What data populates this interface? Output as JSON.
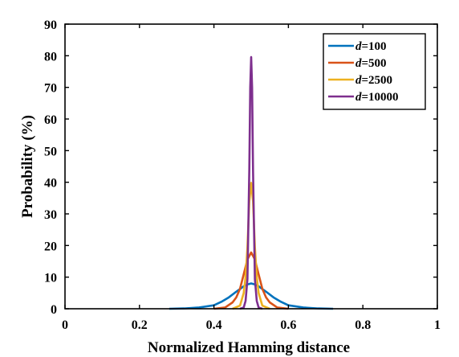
{
  "chart_data": {
    "type": "line",
    "xlabel": "Normalized Hamming distance",
    "ylabel": "Probability (%)",
    "xlim": [
      0,
      1
    ],
    "ylim": [
      0,
      90
    ],
    "xticks": [
      0,
      0.2,
      0.4,
      0.6,
      0.8,
      1
    ],
    "xtick_labels": [
      "0",
      "0.2",
      "0.4",
      "0.6",
      "0.8",
      "1"
    ],
    "yticks": [
      0,
      10,
      20,
      30,
      40,
      50,
      60,
      70,
      80,
      90
    ],
    "ytick_labels": [
      "0",
      "10",
      "20",
      "30",
      "40",
      "50",
      "60",
      "70",
      "80",
      "90"
    ],
    "grid": false,
    "legend_position": "top-right",
    "series": [
      {
        "name": "d=100",
        "name_prefix": "d",
        "name_suffix": "=100",
        "color": "#0072BD",
        "x": [
          0.28,
          0.32,
          0.36,
          0.4,
          0.42,
          0.44,
          0.46,
          0.48,
          0.49,
          0.5,
          0.51,
          0.52,
          0.54,
          0.56,
          0.58,
          0.6,
          0.64,
          0.68,
          0.72
        ],
        "y": [
          0.0,
          0.1,
          0.4,
          1.1,
          2.2,
          3.6,
          5.4,
          7.1,
          7.7,
          8.0,
          7.7,
          7.1,
          5.4,
          3.6,
          2.2,
          1.1,
          0.4,
          0.1,
          0.0
        ]
      },
      {
        "name": "d=500",
        "name_prefix": "d",
        "name_suffix": "=500",
        "color": "#D95319",
        "x": [
          0.4,
          0.43,
          0.45,
          0.46,
          0.47,
          0.48,
          0.49,
          0.5,
          0.51,
          0.52,
          0.53,
          0.54,
          0.55,
          0.57,
          0.6
        ],
        "y": [
          0.0,
          0.4,
          2.0,
          3.6,
          6.3,
          10.9,
          15.6,
          17.8,
          15.6,
          10.9,
          6.3,
          3.6,
          2.0,
          0.4,
          0.0
        ],
        "end_y": 0.8
      },
      {
        "name": "d=2500",
        "name_prefix": "d",
        "name_suffix": "=2500",
        "color": "#EDB120",
        "x": [
          0.45,
          0.47,
          0.48,
          0.485,
          0.49,
          0.495,
          0.5,
          0.505,
          0.51,
          0.515,
          0.52,
          0.53,
          0.55
        ],
        "y": [
          0.0,
          1.0,
          5.0,
          10.0,
          19.5,
          34.0,
          39.8,
          34.0,
          19.5,
          10.0,
          5.0,
          1.0,
          0.0
        ]
      },
      {
        "name": "d=10000",
        "name_prefix": "d",
        "name_suffix": "=10000",
        "color": "#7E2F8E",
        "x": [
          0.47,
          0.48,
          0.485,
          0.49,
          0.495,
          0.4975,
          0.5,
          0.5025,
          0.505,
          0.51,
          0.515,
          0.52,
          0.53
        ],
        "y": [
          0.0,
          0.4,
          2.5,
          9.4,
          44.0,
          70.0,
          79.6,
          70.0,
          44.0,
          9.4,
          2.5,
          0.4,
          0.0
        ]
      }
    ]
  }
}
